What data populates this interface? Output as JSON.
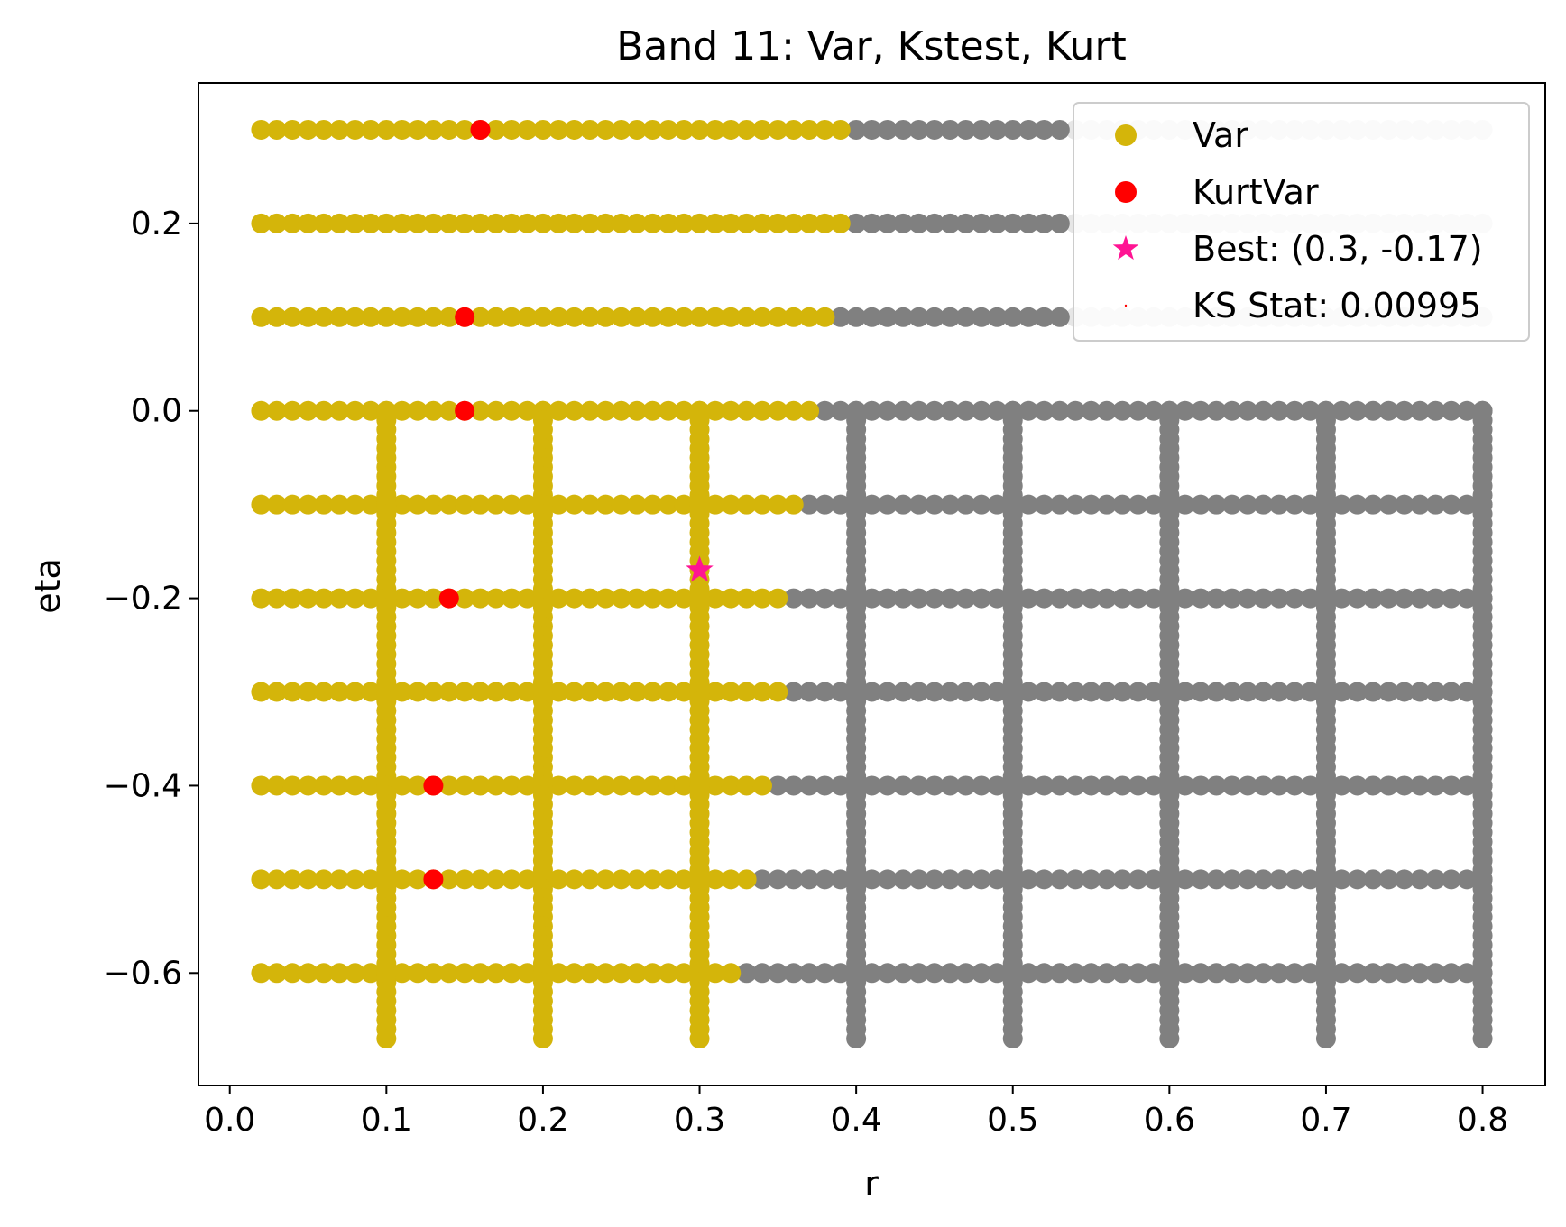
{
  "chart_data": {
    "type": "scatter",
    "title": "Band 11: Var, Kstest, Kurt",
    "xlabel": "r",
    "ylabel": "eta",
    "xlim": [
      -0.02,
      0.84
    ],
    "ylim": [
      -0.72,
      0.35
    ],
    "xticks": [
      0.0,
      0.1,
      0.2,
      0.3,
      0.4,
      0.5,
      0.6,
      0.7,
      0.8
    ],
    "xtick_labels": [
      "0.0",
      "0.1",
      "0.2",
      "0.3",
      "0.4",
      "0.5",
      "0.6",
      "0.7",
      "0.8"
    ],
    "yticks": [
      0.2,
      0.0,
      -0.2,
      -0.4,
      -0.6
    ],
    "ytick_labels": [
      "0.2",
      "0.0",
      "−0.2",
      "−0.4",
      "−0.6"
    ],
    "grid": false,
    "legend_position": "top-right",
    "colors": {
      "var": "#d4b50a",
      "excluded": "#808080",
      "out_of_range": "#e6e6e6",
      "kurtvar": "#ff0000",
      "best": "#ff1493"
    },
    "horizontal_rows": {
      "r_start": 0.02,
      "r_end": 0.8,
      "r_step": 0.01,
      "rows": [
        {
          "eta": 0.3,
          "var_max_r": 0.39,
          "excluded_max_r": 0.53
        },
        {
          "eta": 0.2,
          "var_max_r": 0.39,
          "excluded_max_r": 0.53
        },
        {
          "eta": 0.1,
          "var_max_r": 0.38,
          "excluded_max_r": 0.53
        },
        {
          "eta": 0.0,
          "var_max_r": 0.37,
          "excluded_max_r": 0.8
        },
        {
          "eta": -0.1,
          "var_max_r": 0.36,
          "excluded_max_r": 0.8
        },
        {
          "eta": -0.2,
          "var_max_r": 0.35,
          "excluded_max_r": 0.8
        },
        {
          "eta": -0.3,
          "var_max_r": 0.35,
          "excluded_max_r": 0.8
        },
        {
          "eta": -0.4,
          "var_max_r": 0.34,
          "excluded_max_r": 0.8
        },
        {
          "eta": -0.5,
          "var_max_r": 0.33,
          "excluded_max_r": 0.8
        },
        {
          "eta": -0.6,
          "var_max_r": 0.32,
          "excluded_max_r": 0.8
        }
      ]
    },
    "vertical_columns": {
      "eta_start": 0.0,
      "eta_end": -0.67,
      "eta_step": 0.01,
      "columns": [
        {
          "r": 0.1,
          "category": "var"
        },
        {
          "r": 0.2,
          "category": "var"
        },
        {
          "r": 0.3,
          "category": "var"
        },
        {
          "r": 0.4,
          "category": "excluded"
        },
        {
          "r": 0.5,
          "category": "excluded"
        },
        {
          "r": 0.6,
          "category": "excluded"
        },
        {
          "r": 0.7,
          "category": "excluded"
        },
        {
          "r": 0.8,
          "category": "excluded"
        }
      ]
    },
    "kurtvar_points": [
      {
        "r": 0.16,
        "eta": 0.3
      },
      {
        "r": 0.15,
        "eta": 0.1
      },
      {
        "r": 0.15,
        "eta": 0.0
      },
      {
        "r": 0.14,
        "eta": -0.2
      },
      {
        "r": 0.13,
        "eta": -0.4
      },
      {
        "r": 0.13,
        "eta": -0.5
      }
    ],
    "best_point": {
      "r": 0.3,
      "eta": -0.17
    },
    "legend": [
      {
        "label": "Var",
        "marker": "circle",
        "color": "#d4b50a"
      },
      {
        "label": "KurtVar",
        "marker": "circle",
        "color": "#ff0000"
      },
      {
        "label": "Best: (0.3, -0.17)",
        "marker": "star",
        "color": "#ff1493"
      },
      {
        "label": "KS Stat: 0.00995",
        "marker": "dot",
        "color": "#ff0000"
      }
    ]
  }
}
